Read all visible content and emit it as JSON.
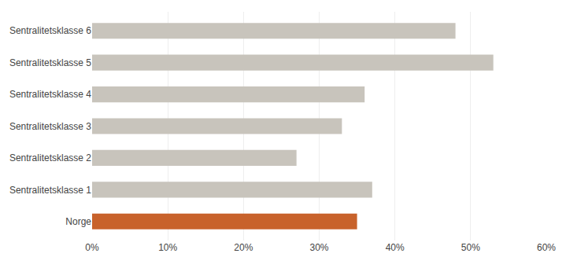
{
  "chart_data": {
    "type": "bar",
    "orientation": "horizontal",
    "categories": [
      "Norge",
      "Sentralitetsklasse 1",
      "Sentralitetsklasse 2",
      "Sentralitetsklasse 3",
      "Sentralitetsklasse 4",
      "Sentralitetsklasse 5",
      "Sentralitetsklasse 6"
    ],
    "values": [
      35,
      37,
      27,
      33,
      36,
      53,
      48
    ],
    "colors": [
      "#c8622b",
      "#c8c4bc",
      "#c8c4bc",
      "#c8c4bc",
      "#c8c4bc",
      "#c8c4bc",
      "#c8c4bc"
    ],
    "xlim": [
      0,
      60
    ],
    "xticks": [
      {
        "value": 0,
        "label": "0%"
      },
      {
        "value": 10,
        "label": "10%"
      },
      {
        "value": 20,
        "label": "20%"
      },
      {
        "value": 30,
        "label": "30%"
      },
      {
        "value": 40,
        "label": "40%"
      },
      {
        "value": 50,
        "label": "50%"
      },
      {
        "value": 60,
        "label": "60%"
      }
    ],
    "grid": true
  }
}
